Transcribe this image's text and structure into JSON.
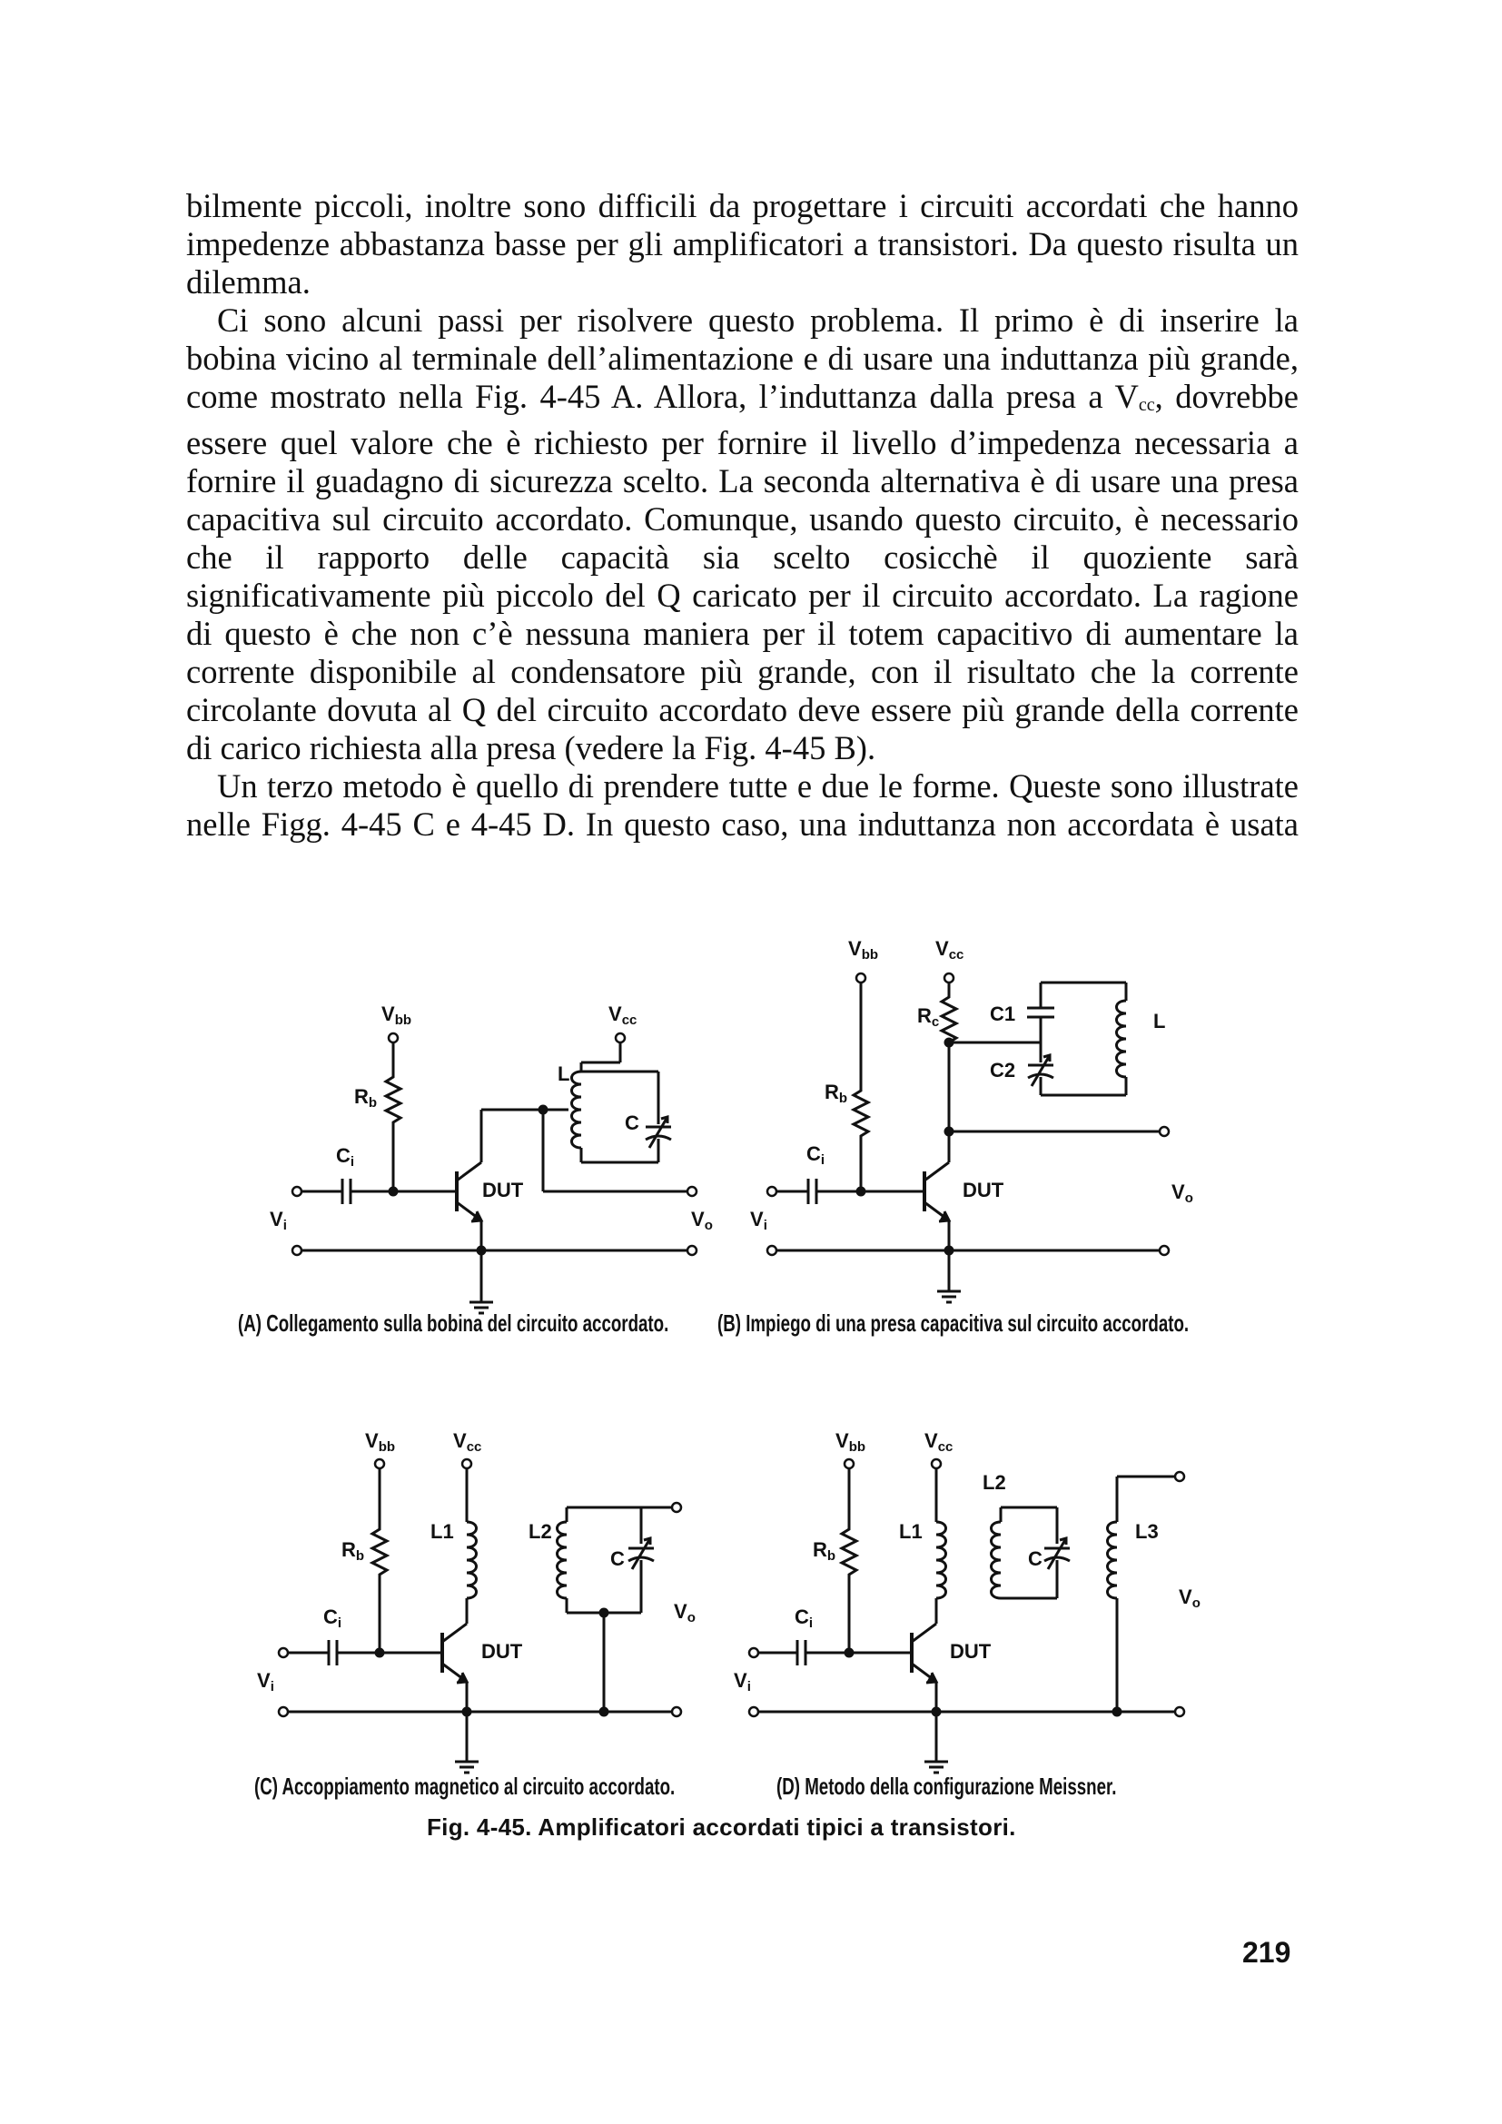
{
  "text": {
    "p1": "bilmente piccoli, inoltre sono difficili da progettare i circuiti accordati che hanno impedenze abbastanza basse per gli amplificatori a transistori. Da questo risulta un dilemma.",
    "p2a": "Ci sono alcuni passi per risolvere questo problema. Il primo è di inserire la bobina vicino al terminale dell’alimentazione e di usare una induttanza più grande, come mostrato nella Fig. 4-45 A. Allora, l’induttanza dalla presa a V",
    "p2sub": "cc",
    "p2b": ", dovrebbe essere quel valore che è richiesto per fornire il livello d’impedenza necessaria a fornire il guadagno di sicurezza scelto. La seconda alternativa è di usare una presa capacitiva sul circuito accordato. Comunque, usando questo circuito, è necessario che il rapporto delle capacità sia scelto cosicchè il quoziente sarà significativamente più piccolo del Q caricato per il circuito accordato. La ragione di questo è che non c’è nessuna maniera per il totem capacitivo di aumentare la corrente disponibile al condensatore più grande, con il risultato che la corrente circolante dovuta al Q del circuito accordato deve essere più grande della corrente di carico richiesta alla presa (vedere la Fig. 4-45 B).",
    "p3": "Un terzo metodo è quello di prendere tutte e due le forme. Queste sono illustrate nelle Figg. 4-45 C e 4-45 D. In questo caso, una induttanza non accordata è usata"
  },
  "figure": {
    "title": "Fig. 4-45. Amplificatori accordati tipici a transistori.",
    "captions": {
      "a": "(A) Collegamento sulla bobina del circuito accordato.",
      "b": "(B) Impiego di una presa capacitiva sul circuito accordato.",
      "c": "(C) Accoppiamento magnetico al circuito accordato.",
      "d": "(D) Metodo della configurazione Meissner."
    },
    "labels": {
      "vbb": "V",
      "vbb_sub": "bb",
      "vcc": "V",
      "vcc_sub": "cc",
      "rb": "R",
      "rb_sub": "b",
      "rc": "R",
      "rc_sub": "c",
      "ci": "C",
      "ci_sub": "i",
      "vi": "V",
      "vi_sub": "i",
      "vo": "V",
      "vo_sub": "o",
      "dut": "DUT",
      "l": "L",
      "c": "C",
      "c1": "C1",
      "c2": "C2",
      "l1": "L1",
      "l2": "L2",
      "l3": "L3"
    }
  },
  "page_number": "219"
}
